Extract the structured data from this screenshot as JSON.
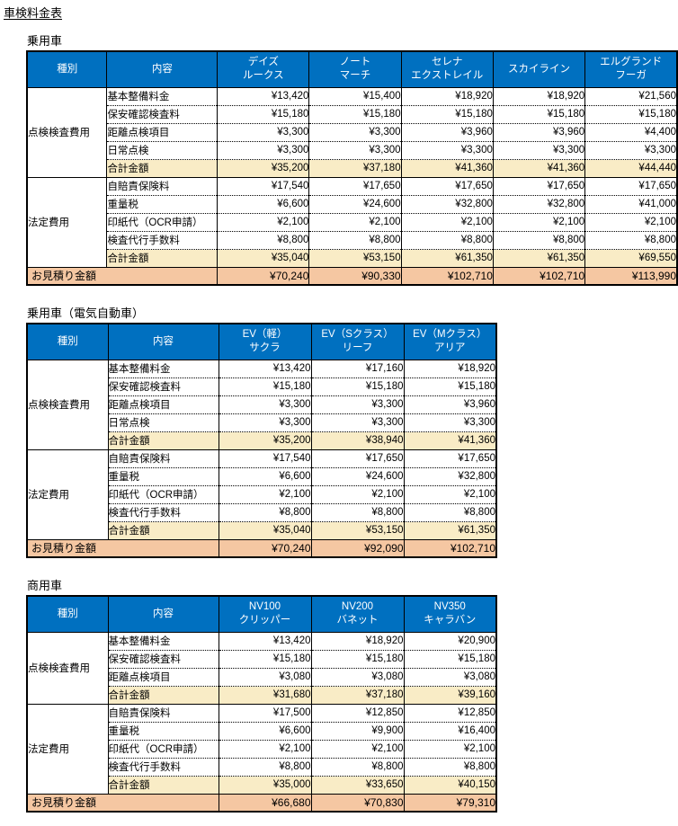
{
  "title": "車検料金表",
  "header_labels": {
    "category": "種別",
    "item": "内容"
  },
  "labels": {
    "estimate": "お見積り金額"
  },
  "colors": {
    "header_bg": "#0070C0",
    "header_text": "#FFFFFF",
    "subtotal_bg": "#F9ECC6",
    "estimate_bg": "#F5C7A2",
    "border": "#000000"
  },
  "tables": [
    {
      "section": "乗用車",
      "vehicles": [
        "デイズ\nルークス",
        "ノート\nマーチ",
        "セレナ\nエクストレイル",
        "スカイライン",
        "エルグランド\nフーガ"
      ],
      "groups": [
        {
          "category": "点検検査費用",
          "rows": [
            {
              "item": "基本整備料金",
              "values": [
                "¥13,420",
                "¥15,400",
                "¥18,920",
                "¥18,920",
                "¥21,560"
              ]
            },
            {
              "item": "保安確認検査料",
              "values": [
                "¥15,180",
                "¥15,180",
                "¥15,180",
                "¥15,180",
                "¥15,180"
              ]
            },
            {
              "item": "距離点検項目",
              "values": [
                "¥3,300",
                "¥3,300",
                "¥3,960",
                "¥3,960",
                "¥4,400"
              ]
            },
            {
              "item": "日常点検",
              "values": [
                "¥3,300",
                "¥3,300",
                "¥3,300",
                "¥3,300",
                "¥3,300"
              ]
            },
            {
              "item": "合計金額",
              "subtotal": true,
              "values": [
                "¥35,200",
                "¥37,180",
                "¥41,360",
                "¥41,360",
                "¥44,440"
              ]
            }
          ]
        },
        {
          "category": "法定費用",
          "rows": [
            {
              "item": "自賠責保険料",
              "values": [
                "¥17,540",
                "¥17,650",
                "¥17,650",
                "¥17,650",
                "¥17,650"
              ]
            },
            {
              "item": "重量税",
              "values": [
                "¥6,600",
                "¥24,600",
                "¥32,800",
                "¥32,800",
                "¥41,000"
              ]
            },
            {
              "item": "印紙代（OCR申請）",
              "values": [
                "¥2,100",
                "¥2,100",
                "¥2,100",
                "¥2,100",
                "¥2,100"
              ]
            },
            {
              "item": "検査代行手数料",
              "values": [
                "¥8,800",
                "¥8,800",
                "¥8,800",
                "¥8,800",
                "¥8,800"
              ]
            },
            {
              "item": "合計金額",
              "subtotal": true,
              "values": [
                "¥35,040",
                "¥53,150",
                "¥61,350",
                "¥61,350",
                "¥69,550"
              ]
            }
          ]
        }
      ],
      "estimate": [
        "¥70,240",
        "¥90,330",
        "¥102,710",
        "¥102,710",
        "¥113,990"
      ]
    },
    {
      "section": "乗用車（電気自動車）",
      "vehicles": [
        "EV（軽）\nサクラ",
        "EV（Sクラス）\nリーフ",
        "EV（Mクラス）\nアリア"
      ],
      "groups": [
        {
          "category": "点検検査費用",
          "rows": [
            {
              "item": "基本整備料金",
              "values": [
                "¥13,420",
                "¥17,160",
                "¥18,920"
              ]
            },
            {
              "item": "保安確認検査料",
              "values": [
                "¥15,180",
                "¥15,180",
                "¥15,180"
              ]
            },
            {
              "item": "距離点検項目",
              "values": [
                "¥3,300",
                "¥3,300",
                "¥3,960"
              ]
            },
            {
              "item": "日常点検",
              "values": [
                "¥3,300",
                "¥3,300",
                "¥3,300"
              ]
            },
            {
              "item": "合計金額",
              "subtotal": true,
              "values": [
                "¥35,200",
                "¥38,940",
                "¥41,360"
              ]
            }
          ]
        },
        {
          "category": "法定費用",
          "rows": [
            {
              "item": "自賠責保険料",
              "values": [
                "¥17,540",
                "¥17,650",
                "¥17,650"
              ]
            },
            {
              "item": "重量税",
              "values": [
                "¥6,600",
                "¥24,600",
                "¥32,800"
              ]
            },
            {
              "item": "印紙代（OCR申請）",
              "values": [
                "¥2,100",
                "¥2,100",
                "¥2,100"
              ]
            },
            {
              "item": "検査代行手数料",
              "values": [
                "¥8,800",
                "¥8,800",
                "¥8,800"
              ]
            },
            {
              "item": "合計金額",
              "subtotal": true,
              "values": [
                "¥35,040",
                "¥53,150",
                "¥61,350"
              ]
            }
          ]
        }
      ],
      "estimate": [
        "¥70,240",
        "¥92,090",
        "¥102,710"
      ]
    },
    {
      "section": "商用車",
      "vehicles": [
        "NV100\nクリッパー",
        "NV200\nバネット",
        "NV350\nキャラバン"
      ],
      "groups": [
        {
          "category": "点検検査費用",
          "rows": [
            {
              "item": "基本整備料金",
              "values": [
                "¥13,420",
                "¥18,920",
                "¥20,900"
              ]
            },
            {
              "item": "保安確認検査料",
              "values": [
                "¥15,180",
                "¥15,180",
                "¥15,180"
              ]
            },
            {
              "item": "距離点検項目",
              "values": [
                "¥3,080",
                "¥3,080",
                "¥3,080"
              ]
            },
            {
              "item": "合計金額",
              "subtotal": true,
              "values": [
                "¥31,680",
                "¥37,180",
                "¥39,160"
              ]
            }
          ]
        },
        {
          "category": "法定費用",
          "rows": [
            {
              "item": "自賠責保険料",
              "values": [
                "¥17,500",
                "¥12,850",
                "¥12,850"
              ]
            },
            {
              "item": "重量税",
              "values": [
                "¥6,600",
                "¥9,900",
                "¥16,400"
              ]
            },
            {
              "item": "印紙代（OCR申請）",
              "values": [
                "¥2,100",
                "¥2,100",
                "¥2,100"
              ]
            },
            {
              "item": "検査代行手数料",
              "values": [
                "¥8,800",
                "¥8,800",
                "¥8,800"
              ]
            },
            {
              "item": "合計金額",
              "subtotal": true,
              "values": [
                "¥35,000",
                "¥33,650",
                "¥40,150"
              ]
            }
          ]
        }
      ],
      "estimate": [
        "¥66,680",
        "¥70,830",
        "¥79,310"
      ]
    }
  ]
}
